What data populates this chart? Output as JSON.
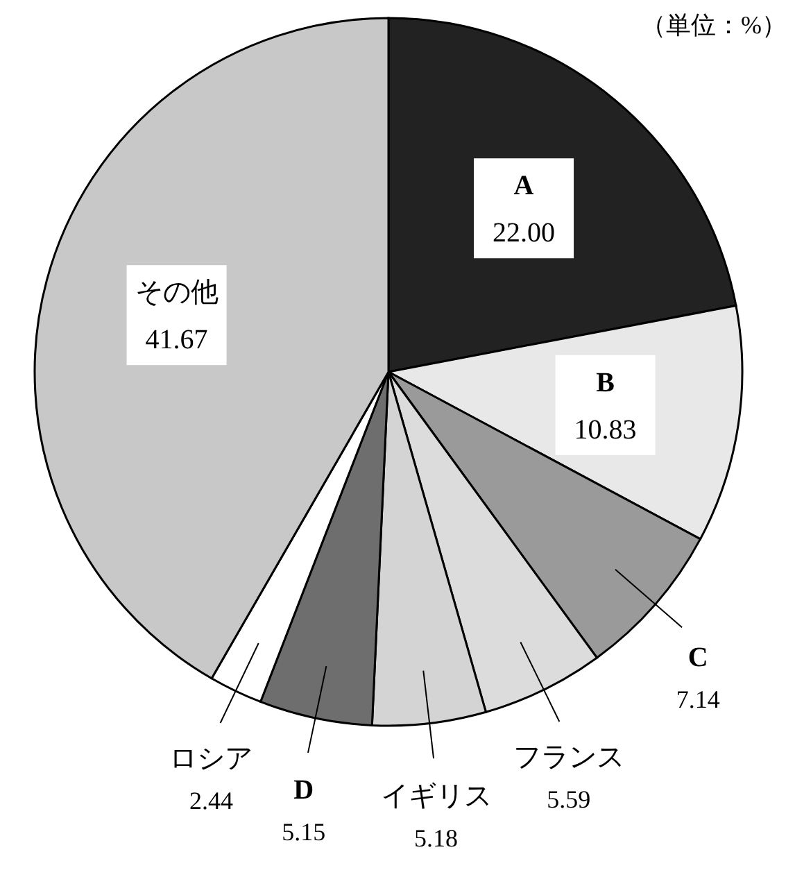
{
  "chart_data": {
    "type": "pie",
    "categories": [
      "A",
      "B",
      "C",
      "フランス",
      "イギリス",
      "D",
      "ロシア",
      "その他"
    ],
    "values": [
      22.0,
      10.83,
      7.14,
      5.59,
      5.18,
      5.15,
      2.44,
      41.67
    ],
    "colors": [
      "#222222",
      "#e8e8e8",
      "#9a9a9a",
      "#dcdcdc",
      "#d4d4d4",
      "#6e6e6e",
      "#ffffff",
      "#c8c8c8"
    ],
    "value_labels": [
      "22.00",
      "10.83",
      "7.14",
      "5.59",
      "5.18",
      "5.15",
      "2.44",
      "41.67"
    ],
    "annotations": [
      "（単位：%）"
    ]
  }
}
